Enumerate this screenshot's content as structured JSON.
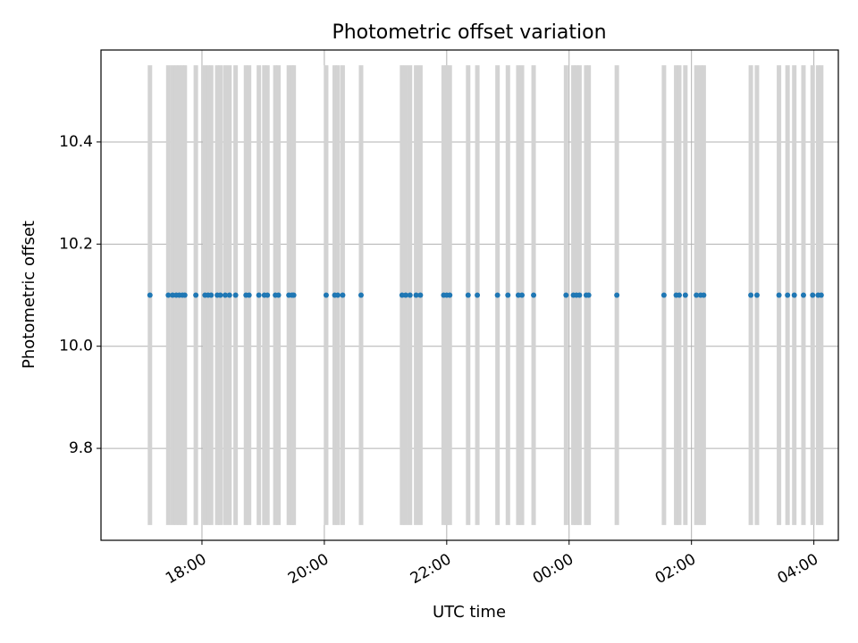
{
  "chart_data": {
    "type": "scatter",
    "title": "Photometric offset variation",
    "xlabel": "UTC time",
    "ylabel": "Photometric offset",
    "x_unit": "hours",
    "xlim": [
      16.35,
      28.4
    ],
    "ylim": [
      9.62,
      10.58
    ],
    "grid": true,
    "x_ticks": [
      {
        "value": 18,
        "label": "18:00"
      },
      {
        "value": 20,
        "label": "20:00"
      },
      {
        "value": 22,
        "label": "22:00"
      },
      {
        "value": 24,
        "label": "00:00"
      },
      {
        "value": 26,
        "label": "02:00"
      },
      {
        "value": 28,
        "label": "04:00"
      }
    ],
    "y_ticks": [
      {
        "value": 9.8,
        "label": "9.8"
      },
      {
        "value": 10.0,
        "label": "10.0"
      },
      {
        "value": 10.2,
        "label": "10.2"
      },
      {
        "value": 10.4,
        "label": "10.4"
      }
    ],
    "error_bar_range": [
      9.65,
      10.55
    ],
    "series": [
      {
        "color": "#1f77b4",
        "errorbar_color": "#d3d3d3",
        "x": [
          17.15,
          17.45,
          17.52,
          17.58,
          17.63,
          17.68,
          17.72,
          17.9,
          18.05,
          18.1,
          18.15,
          18.25,
          18.3,
          18.38,
          18.45,
          18.55,
          18.72,
          18.77,
          18.93,
          19.02,
          19.07,
          19.2,
          19.25,
          19.42,
          19.47,
          19.5,
          20.03,
          20.17,
          20.22,
          20.3,
          20.6,
          21.27,
          21.33,
          21.4,
          21.5,
          21.57,
          21.95,
          22.0,
          22.05,
          22.35,
          22.5,
          22.83,
          23.0,
          23.17,
          23.23,
          23.42,
          23.95,
          24.07,
          24.12,
          24.17,
          24.28,
          24.32,
          24.78,
          25.55,
          25.75,
          25.8,
          25.9,
          26.08,
          26.15,
          26.2,
          26.97,
          27.07,
          27.43,
          27.57,
          27.68,
          27.83,
          27.98,
          28.07,
          28.12
        ],
        "y": [
          10.1,
          10.1,
          10.1,
          10.1,
          10.1,
          10.1,
          10.1,
          10.1,
          10.1,
          10.1,
          10.1,
          10.1,
          10.1,
          10.1,
          10.1,
          10.1,
          10.1,
          10.1,
          10.1,
          10.1,
          10.1,
          10.1,
          10.1,
          10.1,
          10.1,
          10.1,
          10.1,
          10.1,
          10.1,
          10.1,
          10.1,
          10.1,
          10.1,
          10.1,
          10.1,
          10.1,
          10.1,
          10.1,
          10.1,
          10.1,
          10.1,
          10.1,
          10.1,
          10.1,
          10.1,
          10.1,
          10.1,
          10.1,
          10.1,
          10.1,
          10.1,
          10.1,
          10.1,
          10.1,
          10.1,
          10.1,
          10.1,
          10.1,
          10.1,
          10.1,
          10.1,
          10.1,
          10.1,
          10.1,
          10.1,
          10.1,
          10.1,
          10.1,
          10.1
        ]
      }
    ]
  }
}
